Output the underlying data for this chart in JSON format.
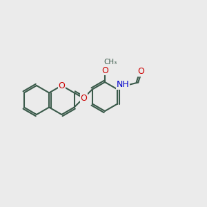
{
  "bg_color": "#ebebeb",
  "bond_color": "#3a5a4a",
  "atom_colors": {
    "O": "#cc0000",
    "N": "#0000cc",
    "H": "#555555"
  },
  "bond_width": 1.5,
  "font_size": 9
}
